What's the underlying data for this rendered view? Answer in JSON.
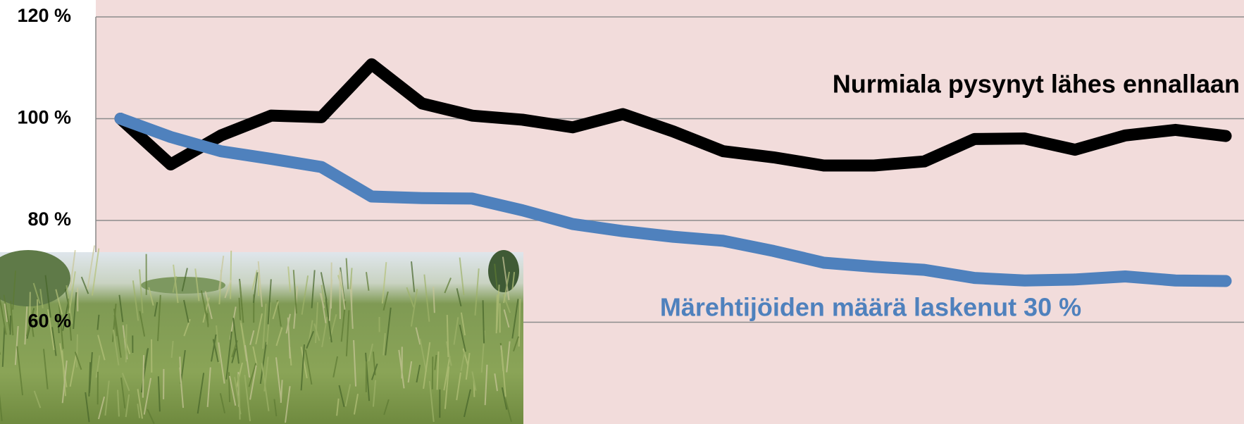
{
  "chart_data": {
    "type": "line",
    "categories": [
      null,
      null,
      null,
      null,
      null,
      null,
      null,
      null,
      null,
      null,
      null,
      null,
      null,
      null,
      null,
      null,
      null,
      null,
      null,
      null,
      null,
      null,
      null
    ],
    "series": [
      {
        "color": "#000000",
        "values": [
          100,
          91.0,
          96.7,
          100.6,
          100.3,
          110.7,
          103.0,
          100.6,
          99.8,
          98.3,
          100.9,
          97.5,
          93.6,
          92.4,
          90.8,
          90.8,
          91.6,
          96.0,
          96.1,
          93.9,
          96.7,
          97.8,
          96.6
        ]
      },
      {
        "color": "#4f81bd",
        "values": [
          100,
          96.4,
          93.6,
          92.1,
          90.5,
          84.7,
          84.4,
          84.3,
          82.0,
          79.3,
          77.9,
          76.8,
          76.0,
          74.0,
          71.7,
          70.9,
          70.3,
          68.7,
          68.2,
          68.4,
          69.0,
          68.2,
          68.1
        ]
      }
    ],
    "annotations": [
      {
        "text": "Nurmiala pysynyt lähes ennallaan",
        "color": "#000000"
      },
      {
        "text": "Märehtijöiden määrä laskenut 30 %",
        "color": "#4f81bd"
      }
    ],
    "ylim": [
      40,
      120
    ],
    "yticks": [
      {
        "value": 60,
        "label": "60 %"
      },
      {
        "value": 80,
        "label": "80 %"
      },
      {
        "value": 100,
        "label": "100 %"
      },
      {
        "value": 120,
        "label": "120 %"
      }
    ],
    "grid": true,
    "plot_background": "#f2dcdb"
  }
}
